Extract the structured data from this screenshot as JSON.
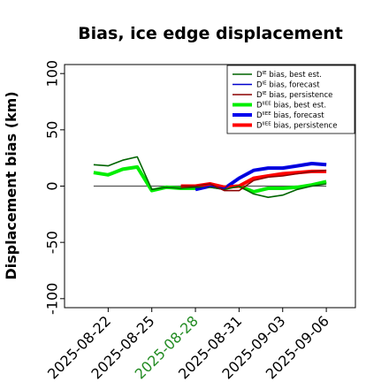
{
  "chart_data": {
    "type": "line",
    "title": "Bias, ice edge displacement",
    "xlabel": "",
    "ylabel": "Displacement bias (km)",
    "ylim": [
      -108,
      108
    ],
    "yticks": [
      -100,
      -50,
      0,
      50,
      100
    ],
    "xlim": [
      "2025-08-19",
      "2025-09-08"
    ],
    "xticks": [
      "2025-08-22",
      "2025-08-25",
      "2025-08-28",
      "2025-08-31",
      "2025-09-03",
      "2025-09-06"
    ],
    "highlight_tick": "2025-08-28",
    "highlight_color": "#228b22",
    "grid": false,
    "legend_position": "top-right",
    "reference_line": {
      "y": 0,
      "x_start": "2025-08-21",
      "x_end": "2025-09-06",
      "color": "#555555"
    },
    "series": [
      {
        "name": "D",
        "sup": "IE",
        "label": " bias, best est.",
        "color": "#006400",
        "width": 1.6,
        "x": [
          "2025-08-21",
          "2025-08-22",
          "2025-08-23",
          "2025-08-24",
          "2025-08-25",
          "2025-08-26",
          "2025-08-27",
          "2025-08-28",
          "2025-08-29",
          "2025-08-30",
          "2025-08-31",
          "2025-09-01",
          "2025-09-02",
          "2025-09-03",
          "2025-09-04",
          "2025-09-05",
          "2025-09-06"
        ],
        "y": [
          19,
          18,
          23,
          26,
          -3,
          -1,
          -2,
          -1,
          -1,
          -3,
          0,
          -7,
          -10,
          -8,
          -3,
          0,
          2
        ]
      },
      {
        "name": "D",
        "sup": "IE",
        "label": " bias, forecast",
        "color": "#0000cd",
        "width": 1.6,
        "x": [
          "2025-08-28",
          "2025-08-29",
          "2025-08-30",
          "2025-08-31",
          "2025-09-01",
          "2025-09-02",
          "2025-09-03",
          "2025-09-04",
          "2025-09-05",
          "2025-09-06"
        ],
        "y": [
          -3,
          0,
          -2,
          7,
          14,
          16,
          16,
          18,
          20,
          19
        ]
      },
      {
        "name": "D",
        "sup": "IE",
        "label": " bias, persistence",
        "color": "#8b0000",
        "width": 1.6,
        "x": [
          "2025-08-27",
          "2025-08-28",
          "2025-08-29",
          "2025-08-30",
          "2025-08-31",
          "2025-09-01",
          "2025-09-02",
          "2025-09-03",
          "2025-09-04",
          "2025-09-05",
          "2025-09-06"
        ],
        "y": [
          0,
          0,
          2,
          -4,
          -4,
          5,
          8,
          9,
          11,
          13,
          14
        ]
      },
      {
        "name": "D",
        "sup": "IIEE",
        "label": " bias, best est.",
        "color": "#00ee00",
        "width": 4,
        "x": [
          "2025-08-21",
          "2025-08-22",
          "2025-08-23",
          "2025-08-24",
          "2025-08-25",
          "2025-08-26",
          "2025-08-27",
          "2025-08-28",
          "2025-08-29",
          "2025-08-30",
          "2025-08-31",
          "2025-09-01",
          "2025-09-02",
          "2025-09-03",
          "2025-09-04",
          "2025-09-05",
          "2025-09-06"
        ],
        "y": [
          12,
          10,
          15,
          17,
          -4,
          -1,
          -2,
          -2,
          0,
          -1,
          0,
          -5,
          -2,
          -2,
          -1,
          1,
          4
        ]
      },
      {
        "name": "D",
        "sup": "IIEE",
        "label": " bias, forecast",
        "color": "#0000ee",
        "width": 4,
        "x": [
          "2025-08-28",
          "2025-08-29",
          "2025-08-30",
          "2025-08-31",
          "2025-09-01",
          "2025-09-02",
          "2025-09-03",
          "2025-09-04",
          "2025-09-05",
          "2025-09-06"
        ],
        "y": [
          -3,
          0,
          -2,
          7,
          14,
          16,
          16,
          18,
          20,
          19
        ]
      },
      {
        "name": "D",
        "sup": "IIEE",
        "label": " bias, persistence",
        "color": "#ff0000",
        "width": 4,
        "x": [
          "2025-08-27",
          "2025-08-28",
          "2025-08-29",
          "2025-08-30",
          "2025-08-31",
          "2025-09-01",
          "2025-09-02",
          "2025-09-03",
          "2025-09-04",
          "2025-09-05",
          "2025-09-06"
        ],
        "y": [
          0,
          0,
          2,
          -1,
          0,
          7,
          9,
          11,
          12,
          13,
          13
        ]
      }
    ]
  }
}
